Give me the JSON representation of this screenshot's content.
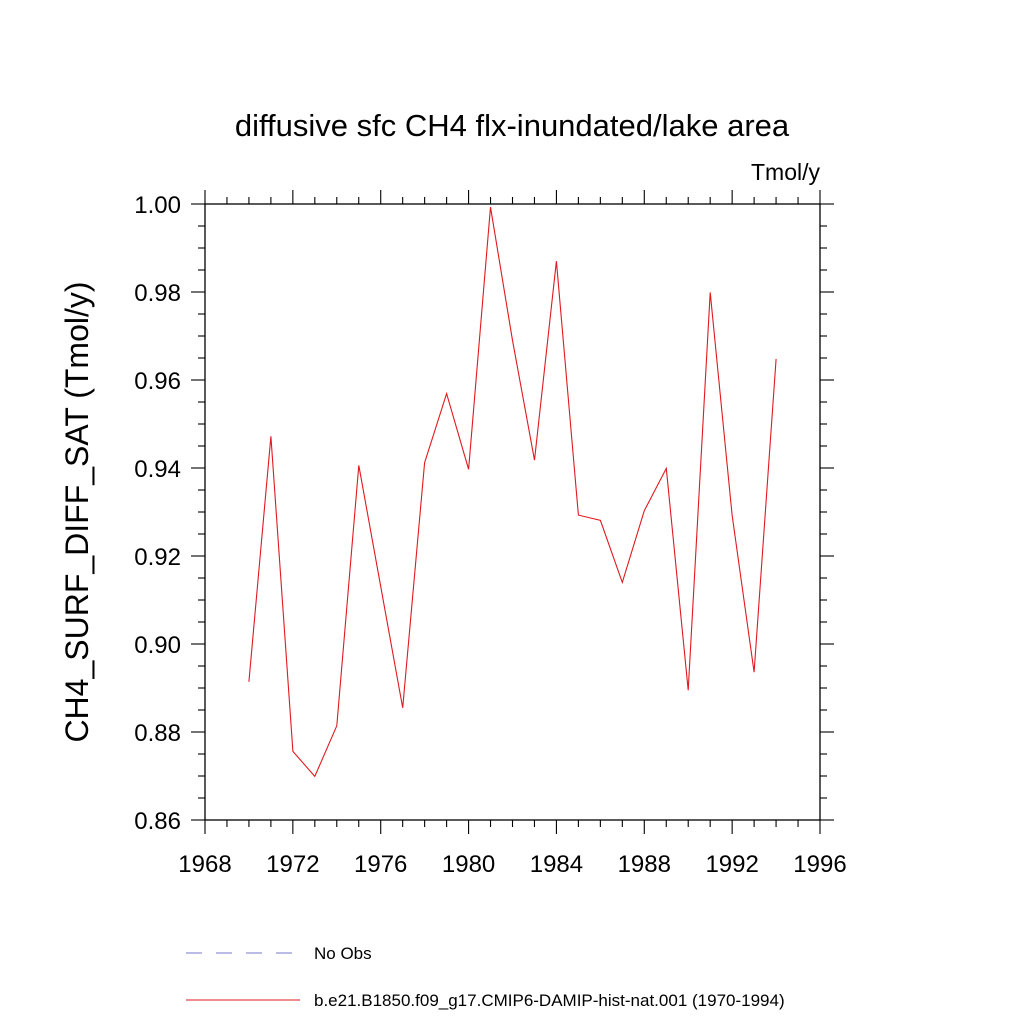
{
  "chart_data": {
    "type": "line",
    "title": "diffusive sfc CH4 flx-inundated/lake area",
    "units_label": "Tmol/y",
    "xlabel": "",
    "ylabel": "CH4_SURF_DIFF_SAT  (Tmol/y)",
    "xlim": [
      1968,
      1996
    ],
    "ylim": [
      0.86,
      1.0
    ],
    "x_ticks": [
      1968,
      1972,
      1976,
      1980,
      1984,
      1988,
      1992,
      1996
    ],
    "x_tick_labels": [
      "1968",
      "1972",
      "1976",
      "1980",
      "1984",
      "1988",
      "1992",
      "1996"
    ],
    "y_ticks": [
      0.86,
      0.88,
      0.9,
      0.92,
      0.94,
      0.96,
      0.98,
      1.0
    ],
    "y_tick_labels": [
      "0.86",
      "0.88",
      "0.90",
      "0.92",
      "0.94",
      "0.96",
      "0.98",
      "1.00"
    ],
    "grid": false,
    "legend_position": "bottom",
    "series": [
      {
        "name": "b.e21.B1850.f09_g17.CMIP6-DAMIP-hist-nat.001 (1970-1994)",
        "color": "#e0191f",
        "style": "solid",
        "x": [
          1970,
          1971,
          1972,
          1973,
          1974,
          1975,
          1976,
          1977,
          1978,
          1979,
          1980,
          1981,
          1982,
          1983,
          1984,
          1985,
          1986,
          1987,
          1988,
          1989,
          1990,
          1991,
          1992,
          1993,
          1994
        ],
        "values": [
          0.8914,
          0.9472,
          0.8756,
          0.8699,
          0.8814,
          0.9406,
          0.9131,
          0.8855,
          0.9412,
          0.9569,
          0.9397,
          0.9993,
          0.969,
          0.9418,
          0.987,
          0.9293,
          0.9281,
          0.914,
          0.9303,
          0.9399,
          0.8895,
          0.9799,
          0.9293,
          0.8936,
          0.9648
        ]
      }
    ],
    "legend": [
      {
        "label": "No Obs",
        "color": "#7777cc",
        "style": "dashed"
      },
      {
        "label": "b.e21.B1850.f09_g17.CMIP6-DAMIP-hist-nat.001 (1970-1994)",
        "color": "#e0191f",
        "style": "solid"
      }
    ]
  }
}
